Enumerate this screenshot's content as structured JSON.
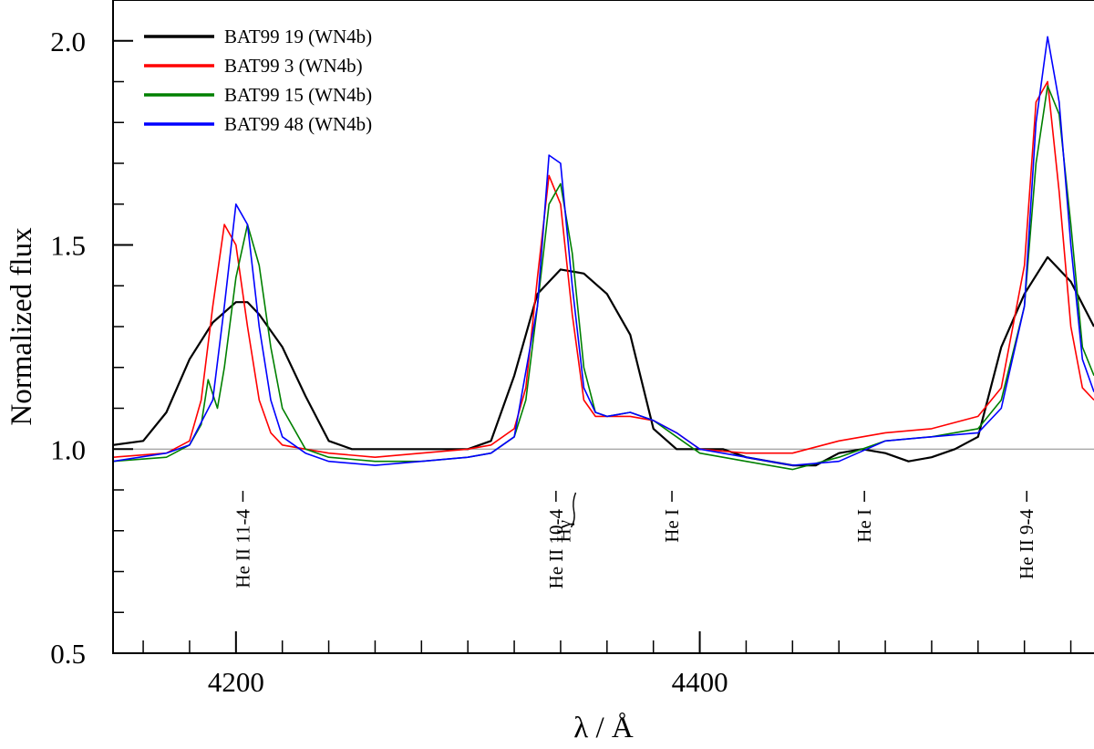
{
  "chart_data": {
    "type": "line",
    "title": "",
    "xlabel": "λ / Å",
    "ylabel": "Normalized flux",
    "xlim": [
      4147,
      4570
    ],
    "ylim": [
      0.5,
      2.1
    ],
    "x_ticks": [
      4200,
      4400
    ],
    "x_tick_labels": [
      "4200",
      "4400"
    ],
    "y_ticks": [
      0.5,
      1.0,
      1.5,
      2.0
    ],
    "y_tick_labels": [
      "0.5",
      "1.0",
      "1.5",
      "2.0"
    ],
    "grid": false,
    "legend_position": "top-left",
    "continuum_level": 1.0,
    "series": [
      {
        "name": "BAT99 19 (WN4b)",
        "color": "#000000",
        "x": [
          4147,
          4160,
          4170,
          4180,
          4190,
          4200,
          4205,
          4210,
          4220,
          4230,
          4240,
          4250,
          4260,
          4280,
          4300,
          4310,
          4320,
          4330,
          4340,
          4350,
          4360,
          4370,
          4380,
          4390,
          4400,
          4410,
          4420,
          4430,
          4440,
          4450,
          4460,
          4470,
          4480,
          4490,
          4500,
          4510,
          4520,
          4530,
          4540,
          4550,
          4560,
          4570
        ],
        "y": [
          1.01,
          1.02,
          1.09,
          1.22,
          1.31,
          1.36,
          1.36,
          1.33,
          1.25,
          1.13,
          1.02,
          1.0,
          1.0,
          1.0,
          1.0,
          1.02,
          1.18,
          1.38,
          1.44,
          1.43,
          1.38,
          1.28,
          1.05,
          1.0,
          1.0,
          1.0,
          0.98,
          0.97,
          0.96,
          0.96,
          0.99,
          1.0,
          0.99,
          0.97,
          0.98,
          1.0,
          1.03,
          1.25,
          1.38,
          1.47,
          1.41,
          1.3
        ]
      },
      {
        "name": "BAT99 3 (WN4b)",
        "color": "#ff0000",
        "x": [
          4147,
          4170,
          4180,
          4185,
          4190,
          4195,
          4200,
          4205,
          4210,
          4215,
          4220,
          4230,
          4240,
          4260,
          4280,
          4300,
          4310,
          4320,
          4325,
          4330,
          4335,
          4340,
          4345,
          4350,
          4355,
          4360,
          4370,
          4380,
          4390,
          4400,
          4420,
          4440,
          4460,
          4480,
          4500,
          4520,
          4530,
          4540,
          4545,
          4550,
          4555,
          4560,
          4565,
          4570
        ],
        "y": [
          0.98,
          0.99,
          1.02,
          1.12,
          1.35,
          1.55,
          1.5,
          1.3,
          1.12,
          1.04,
          1.01,
          1.0,
          0.99,
          0.98,
          0.99,
          1.0,
          1.01,
          1.05,
          1.15,
          1.42,
          1.67,
          1.6,
          1.33,
          1.12,
          1.08,
          1.08,
          1.08,
          1.07,
          1.04,
          1.0,
          0.99,
          0.99,
          1.02,
          1.04,
          1.05,
          1.08,
          1.15,
          1.45,
          1.85,
          1.9,
          1.63,
          1.3,
          1.15,
          1.12
        ]
      },
      {
        "name": "BAT99 15 (WN4b)",
        "color": "#008000",
        "x": [
          4147,
          4170,
          4180,
          4185,
          4188,
          4192,
          4195,
          4200,
          4205,
          4210,
          4215,
          4220,
          4230,
          4240,
          4260,
          4280,
          4300,
          4310,
          4320,
          4325,
          4330,
          4335,
          4340,
          4345,
          4350,
          4355,
          4360,
          4370,
          4380,
          4390,
          4400,
          4420,
          4440,
          4460,
          4480,
          4500,
          4520,
          4530,
          4540,
          4545,
          4550,
          4555,
          4560,
          4565,
          4570
        ],
        "y": [
          0.97,
          0.98,
          1.01,
          1.06,
          1.17,
          1.1,
          1.2,
          1.42,
          1.55,
          1.45,
          1.25,
          1.1,
          1.0,
          0.98,
          0.97,
          0.97,
          0.98,
          0.99,
          1.03,
          1.12,
          1.35,
          1.6,
          1.65,
          1.48,
          1.2,
          1.09,
          1.08,
          1.09,
          1.07,
          1.03,
          0.99,
          0.97,
          0.95,
          0.98,
          1.02,
          1.03,
          1.05,
          1.12,
          1.35,
          1.7,
          1.89,
          1.82,
          1.55,
          1.25,
          1.18
        ]
      },
      {
        "name": "BAT99 48 (WN4b)",
        "color": "#0000ff",
        "x": [
          4147,
          4170,
          4180,
          4190,
          4195,
          4200,
          4205,
          4210,
          4215,
          4220,
          4230,
          4240,
          4260,
          4280,
          4300,
          4310,
          4320,
          4330,
          4335,
          4340,
          4345,
          4350,
          4355,
          4360,
          4370,
          4380,
          4390,
          4400,
          4420,
          4440,
          4460,
          4480,
          4500,
          4520,
          4530,
          4540,
          4545,
          4550,
          4555,
          4560,
          4565,
          4570
        ],
        "y": [
          0.97,
          0.99,
          1.01,
          1.12,
          1.35,
          1.6,
          1.55,
          1.3,
          1.12,
          1.03,
          0.99,
          0.97,
          0.96,
          0.97,
          0.98,
          0.99,
          1.03,
          1.35,
          1.72,
          1.7,
          1.4,
          1.15,
          1.09,
          1.08,
          1.09,
          1.07,
          1.04,
          1.0,
          0.98,
          0.96,
          0.97,
          1.02,
          1.03,
          1.04,
          1.1,
          1.35,
          1.8,
          2.01,
          1.85,
          1.5,
          1.22,
          1.14
        ]
      }
    ],
    "annotations": [
      {
        "text": "He II 11-4",
        "x": 4203
      },
      {
        "text": "He II 10-4",
        "x": 4338
      },
      {
        "text": "Hγ",
        "x": 4341
      },
      {
        "text": "He I",
        "x": 4388
      },
      {
        "text": "He I",
        "x": 4471
      },
      {
        "text": "He II 9-4",
        "x": 4541
      }
    ]
  }
}
